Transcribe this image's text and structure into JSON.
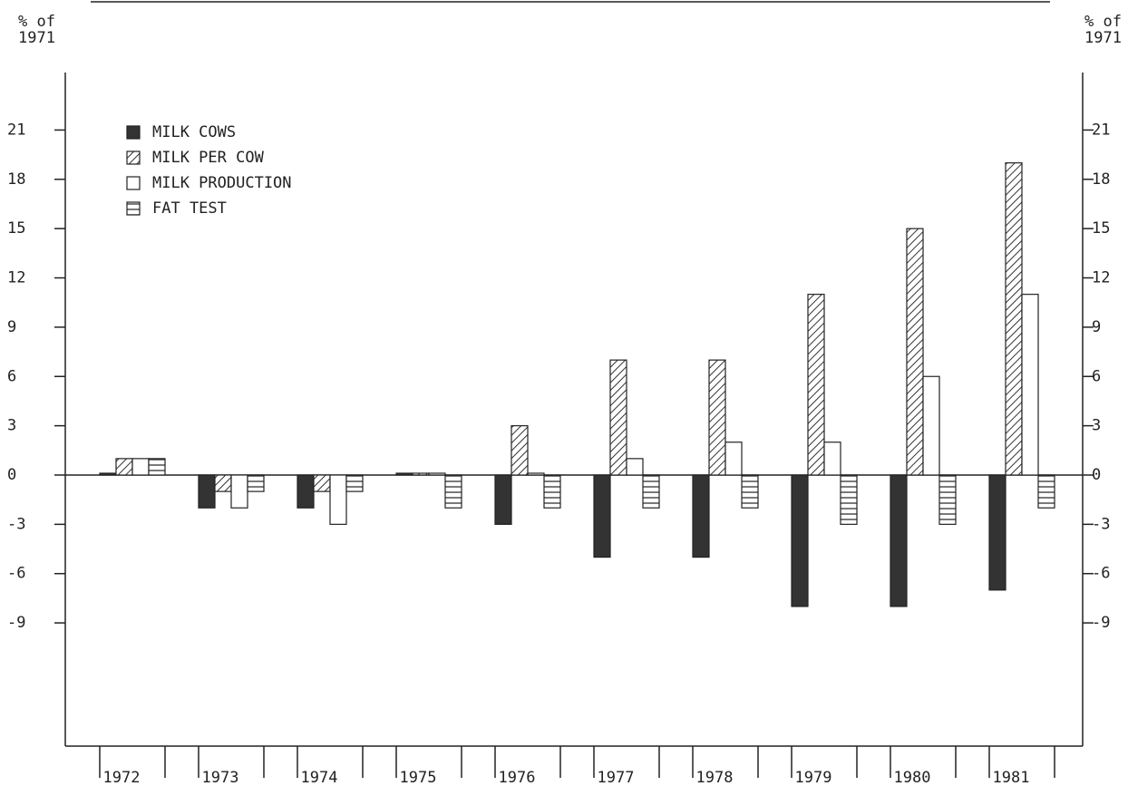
{
  "chart_data": {
    "type": "bar",
    "ylabel": [
      "% of",
      "1971"
    ],
    "y2label": [
      "% of",
      "1971"
    ],
    "categories": [
      "1972",
      "1973",
      "1974",
      "1975",
      "1976",
      "1977",
      "1978",
      "1979",
      "1980",
      "1981"
    ],
    "series": [
      {
        "name": "MILK COWS",
        "color": "#333333",
        "pattern": "solid",
        "values": [
          0,
          -2,
          -2,
          0,
          -3,
          -5,
          -5,
          -8,
          -8,
          -7
        ]
      },
      {
        "name": "MILK PER COW",
        "color": "#333333",
        "pattern": "diagonal",
        "values": [
          1,
          -1,
          -1,
          0,
          3,
          7,
          7,
          11,
          15,
          19
        ]
      },
      {
        "name": "MILK PRODUCTION",
        "color": "#333333",
        "pattern": "none",
        "values": [
          1,
          -2,
          -3,
          0,
          0,
          1,
          2,
          2,
          6,
          11
        ]
      },
      {
        "name": "FAT TEST",
        "color": "#333333",
        "pattern": "horizontal",
        "values": [
          1,
          -1,
          -1,
          -2,
          -2,
          -2,
          -2,
          -3,
          -3,
          -2
        ]
      }
    ],
    "ylim": [
      -16.5,
      24.5
    ],
    "yticks": [
      -9,
      -6,
      -3,
      0,
      3,
      6,
      9,
      12,
      15,
      18,
      21
    ],
    "y2lim": [
      -16.5,
      24.5
    ],
    "y2ticks": [
      -9,
      -6,
      -3,
      0,
      3,
      6,
      9,
      12,
      15,
      18,
      21
    ],
    "legend": "upper left"
  }
}
